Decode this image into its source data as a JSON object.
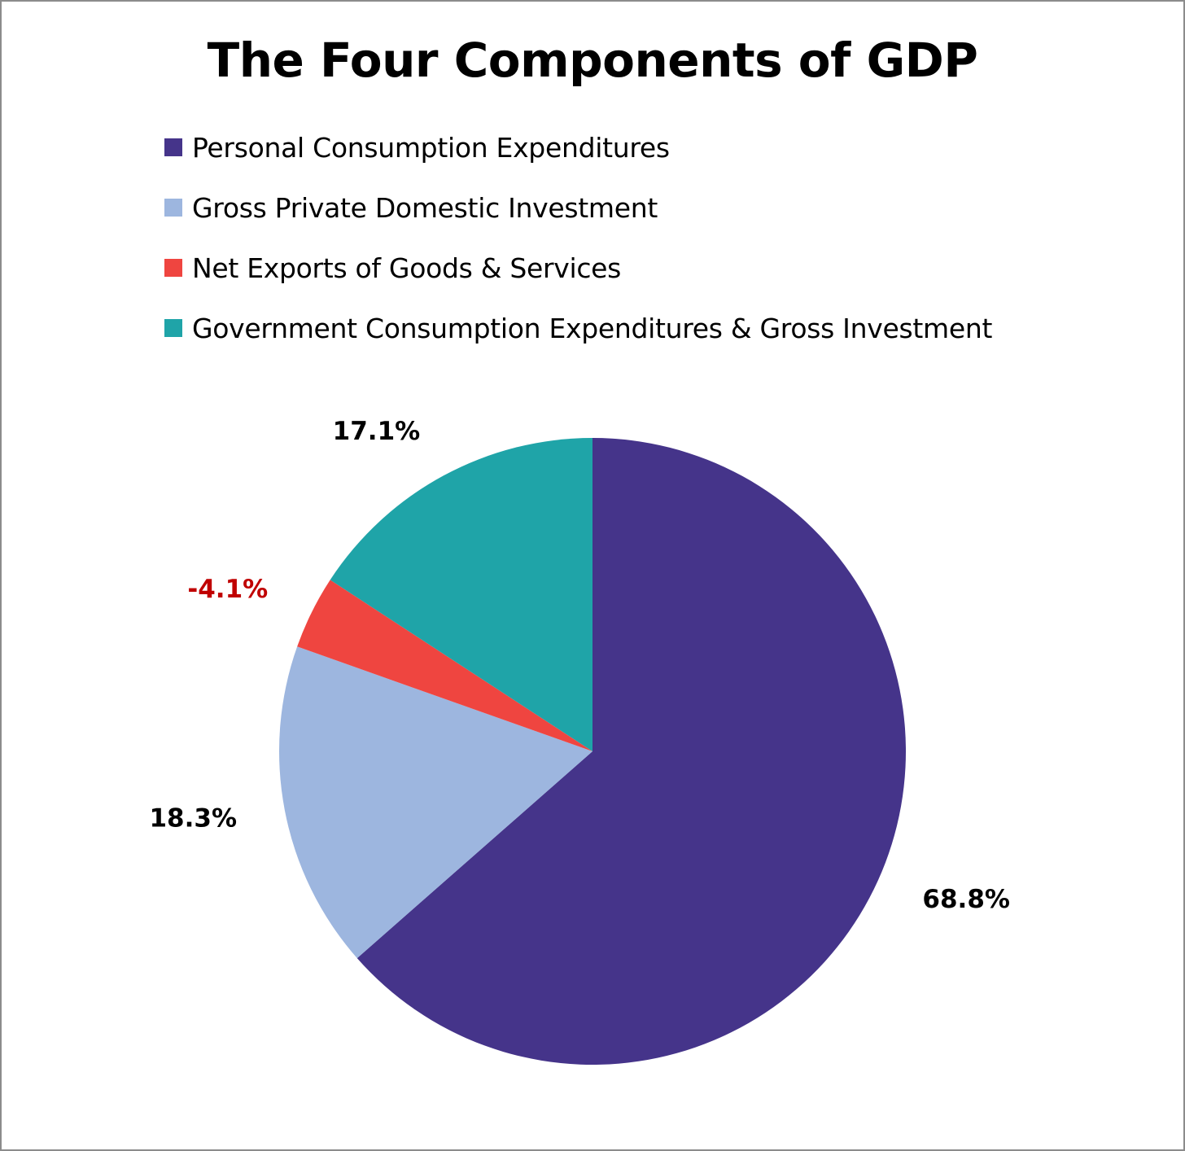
{
  "chart_data": {
    "type": "pie",
    "title": "The Four Components of GDP",
    "slices": [
      {
        "name": "Personal Consumption Expenditures",
        "value": 68.8,
        "label": "68.8%",
        "color": "#45348a",
        "label_color": "#000000"
      },
      {
        "name": "Gross Private Domestic Investment",
        "value": 18.3,
        "label": "18.3%",
        "color": "#9db6df",
        "label_color": "#000000"
      },
      {
        "name": "Net Exports of Goods & Services",
        "value": -4.1,
        "label": "-4.1%",
        "color": "#ef4540",
        "label_color": "#c00000"
      },
      {
        "name": "Government Consumption Expenditures & Gross Investment",
        "value": 17.1,
        "label": "17.1%",
        "color": "#1fa4a8",
        "label_color": "#000000"
      }
    ],
    "legend_position": "top"
  }
}
